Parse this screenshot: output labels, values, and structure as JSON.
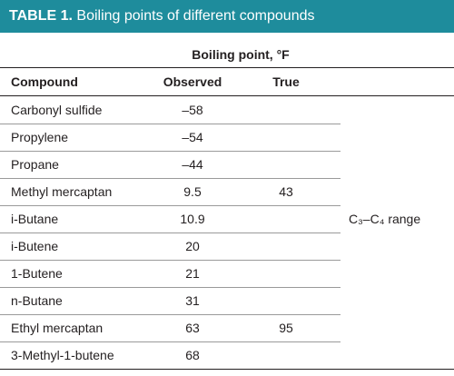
{
  "header": {
    "label": "TABLE 1.",
    "title": "Boiling points of different compounds"
  },
  "table": {
    "group_header": "Boiling point, °F",
    "columns": [
      "Compound",
      "Observed",
      "True"
    ],
    "rows": [
      [
        "Carbonyl sulfide",
        "–58",
        null
      ],
      [
        "Propylene",
        "–54",
        null
      ],
      [
        "Propane",
        "–44",
        null
      ],
      [
        "Methyl mercaptan",
        "9.5",
        "43"
      ],
      [
        "i-Butane",
        "10.9",
        null
      ],
      [
        "i-Butene",
        "20",
        null
      ],
      [
        "1-Butene",
        "21",
        null
      ],
      [
        "n-Butane",
        "31",
        null
      ],
      [
        "Ethyl mercaptan",
        "63",
        "95"
      ],
      [
        "3-Methyl-1-butene",
        "68",
        null
      ]
    ],
    "note": "C₃–C₄ range"
  }
}
